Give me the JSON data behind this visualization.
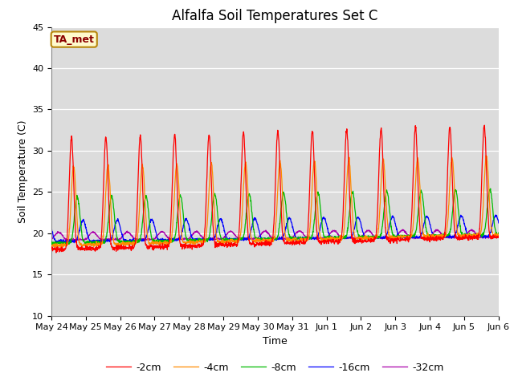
{
  "title": "Alfalfa Soil Temperatures Set C",
  "xlabel": "Time",
  "ylabel": "Soil Temperature (C)",
  "ylim": [
    10,
    45
  ],
  "yticks": [
    10,
    15,
    20,
    25,
    30,
    35,
    40,
    45
  ],
  "annotation_label": "TA_met",
  "annotation_color": "#8B0000",
  "annotation_bg": "#FFFACD",
  "annotation_border": "#B8860B",
  "bg_color": "#DCDCDC",
  "line_colors": {
    "-2cm": "#FF0000",
    "-4cm": "#FF8C00",
    "-8cm": "#00BB00",
    "-16cm": "#0000FF",
    "-32cm": "#AA00AA"
  },
  "x_tick_labels": [
    "May 24",
    "May 25",
    "May 26",
    "May 27",
    "May 28",
    "May 29",
    "May 30",
    "May 31",
    "Jun 1",
    "Jun 2",
    "Jun 3",
    "Jun 4",
    "Jun 5",
    "Jun 6"
  ],
  "title_fontsize": 12,
  "legend_fontsize": 9,
  "axis_fontsize": 8
}
